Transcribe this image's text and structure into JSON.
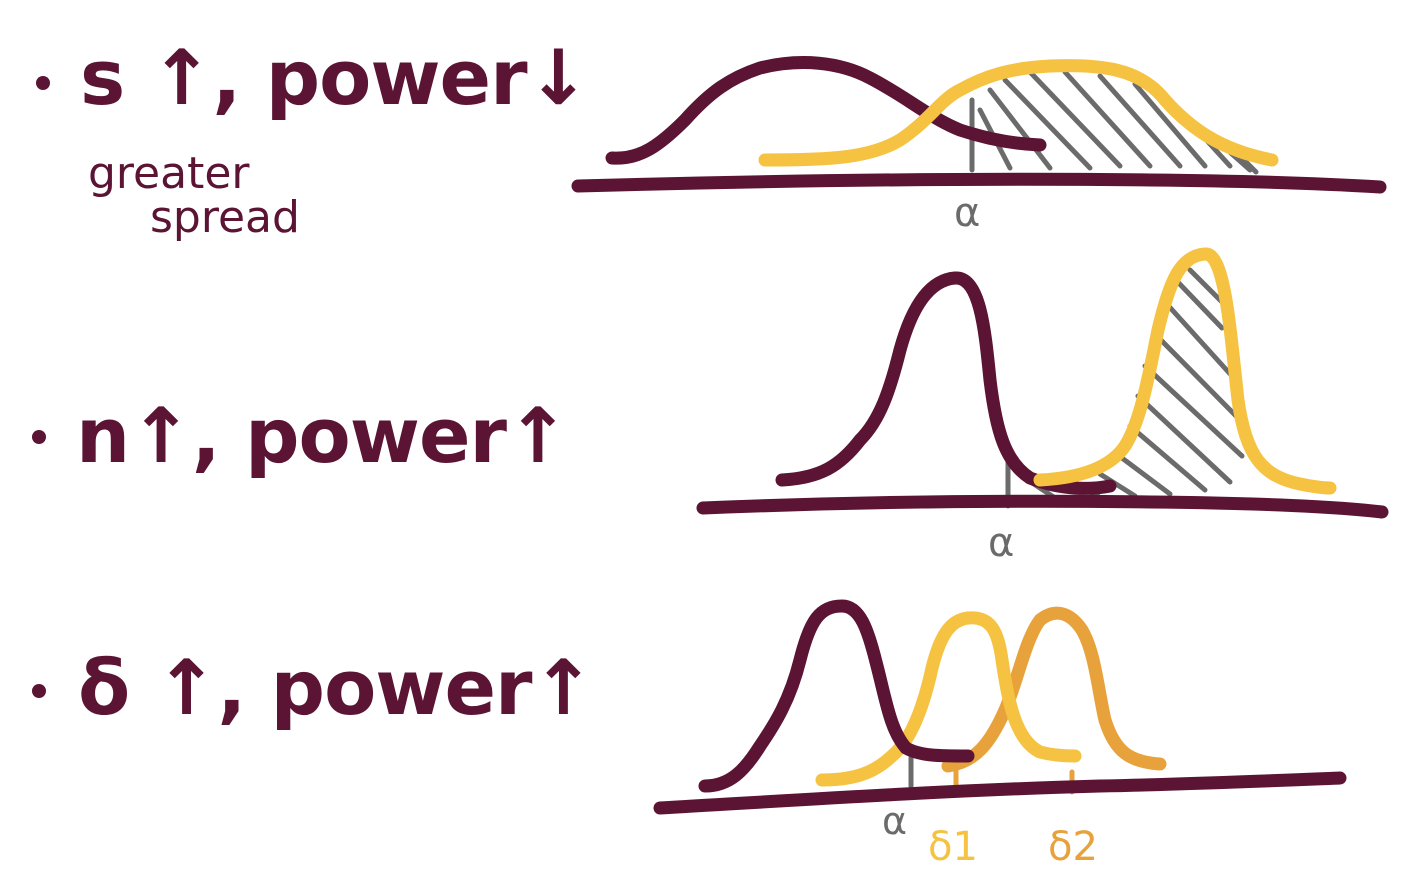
{
  "colors": {
    "maroon": "#5b1433",
    "gold": "#f5c242",
    "orange": "#e8a23c",
    "gray": "#6b6b6b"
  },
  "rows": [
    {
      "heading": "s ↑, power↓",
      "subtitle_line1": "greater",
      "subtitle_line2": "spread",
      "alpha_label": "α"
    },
    {
      "heading": "n↑, power↑",
      "alpha_label": "α"
    },
    {
      "heading": "δ ↑, power↑",
      "alpha_label": "α",
      "delta1_label": "δ1",
      "delta2_label": "δ2"
    }
  ]
}
